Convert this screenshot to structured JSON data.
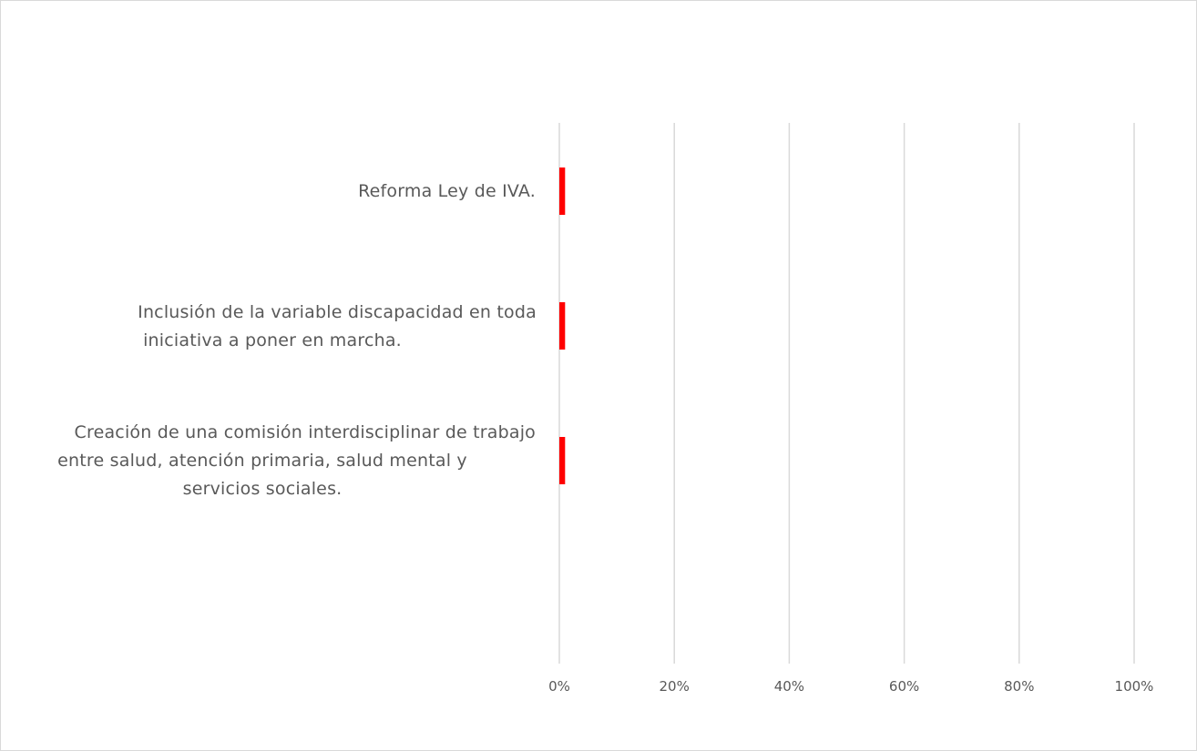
{
  "chart_data": {
    "type": "bar",
    "orientation": "horizontal",
    "categories": [
      [
        "Reforma Ley de IVA."
      ],
      [
        "Inclusión de la variable discapacidad en toda",
        "iniciativa a poner en marcha."
      ],
      [
        "Creación de una comisión interdisciplinar de trabajo",
        "entre salud, atención primaria, salud mental y",
        "servicios sociales."
      ]
    ],
    "values": [
      0.01,
      0.01,
      0.01
    ],
    "xlim": [
      0,
      1
    ],
    "x_ticks": [
      0,
      0.2,
      0.4,
      0.6,
      0.8,
      1.0
    ],
    "x_tick_labels": [
      "0%",
      "20%",
      "40%",
      "60%",
      "80%",
      "100%"
    ],
    "grid": "vertical",
    "colors": {
      "bar": "#ff0000",
      "grid": "#d9d9d9",
      "text": "#595959",
      "border": "#d9d9d9"
    }
  }
}
